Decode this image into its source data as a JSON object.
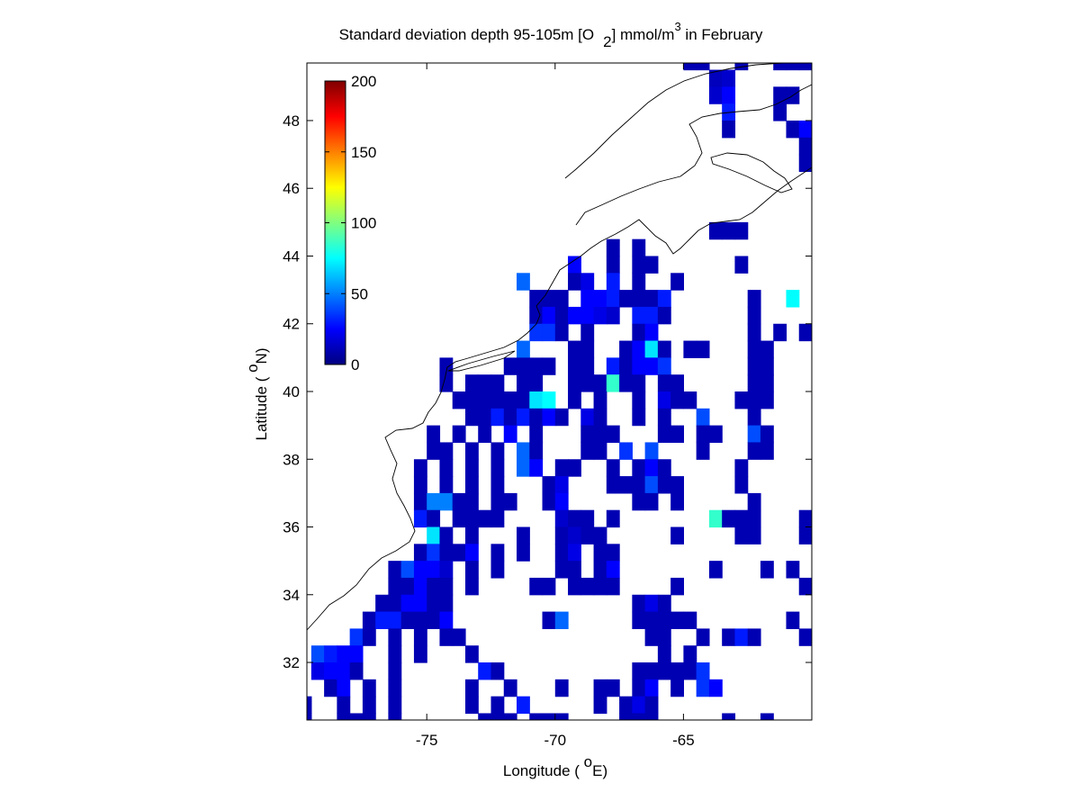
{
  "chart_data": {
    "type": "heatmap",
    "title": [
      "Standard deviation depth 95-105m [O",
      "2",
      "] mmol/m",
      "3",
      " in February"
    ],
    "x_label": [
      "Longitude ( ",
      "o",
      "E)"
    ],
    "y_label": [
      "Latitude ( ",
      "o",
      "N)"
    ],
    "xlim": [
      -79.67,
      -60
    ],
    "ylim": [
      30.3,
      49.7
    ],
    "xticks": [
      -75,
      -70,
      -65
    ],
    "yticks": [
      32,
      34,
      36,
      38,
      40,
      42,
      44,
      46,
      48
    ],
    "colormap": "jet",
    "clim": [
      0,
      200
    ],
    "cticks": [
      0,
      50,
      100,
      150,
      200
    ],
    "rows": [
      {
        "lat": 49.75,
        "lon": [
          -64.75,
          -64.25,
          -62.75,
          -61.25,
          -60.75,
          -60.25
        ],
        "values": [
          10,
          10,
          10,
          10,
          10,
          10
        ]
      },
      {
        "lat": 49.25,
        "lon": [
          -63.75,
          -63.25
        ],
        "values": [
          12,
          15
        ]
      },
      {
        "lat": 48.75,
        "lon": [
          -63.75,
          -63.25,
          -61.25,
          -60.75
        ],
        "values": [
          15,
          25,
          10,
          10
        ]
      },
      {
        "lat": 48.25,
        "lon": [
          -63.25,
          -61.25
        ],
        "values": [
          30,
          10
        ]
      },
      {
        "lat": 47.75,
        "lon": [
          -63.25,
          -60.75,
          -60.25
        ],
        "values": [
          10,
          10,
          25
        ]
      },
      {
        "lat": 47.25,
        "lon": [
          -60.25
        ],
        "values": [
          10
        ]
      },
      {
        "lat": 46.75,
        "lon": [
          -60.25
        ],
        "values": [
          10
        ]
      },
      {
        "lat": 44.75,
        "lon": [
          -63.75,
          -63.25,
          -62.75
        ],
        "values": [
          10,
          10,
          10
        ]
      },
      {
        "lat": 44.25,
        "lon": [
          -67.75,
          -66.75
        ],
        "values": [
          10,
          10
        ]
      },
      {
        "lat": 43.75,
        "lon": [
          -69.25,
          -67.75,
          -66.75,
          -66.25,
          -62.75
        ],
        "values": [
          25,
          10,
          10,
          10,
          10
        ]
      },
      {
        "lat": 43.25,
        "lon": [
          -71.25,
          -69.25,
          -68.75,
          -67.75,
          -66.75,
          -65.25
        ],
        "values": [
          45,
          10,
          20,
          30,
          10,
          10
        ]
      },
      {
        "lat": 42.75,
        "lon": [
          -70.75,
          -70.25,
          -69.75,
          -68.75,
          -68.25,
          -67.75,
          -67.25,
          -66.75,
          -66.25,
          -65.75,
          -62.25,
          -60.75
        ],
        "values": [
          10,
          10,
          10,
          25,
          25,
          30,
          10,
          10,
          10,
          30,
          10,
          75
        ]
      },
      {
        "lat": 42.25,
        "lon": [
          -70.75,
          -70.25,
          -69.75,
          -69.25,
          -68.75,
          -68.25,
          -67.75,
          -66.75,
          -66.25,
          -65.75,
          -62.25
        ],
        "values": [
          10,
          25,
          10,
          25,
          25,
          20,
          15,
          30,
          30,
          10,
          10
        ]
      },
      {
        "lat": 41.75,
        "lon": [
          -70.75,
          -70.25,
          -69.75,
          -68.75,
          -66.75,
          -66.25,
          -62.25,
          -61.25,
          -60.25
        ],
        "values": [
          35,
          35,
          10,
          10,
          10,
          25,
          10,
          10,
          10
        ]
      },
      {
        "lat": 41.25,
        "lon": [
          -71.25,
          -69.25,
          -68.75,
          -67.25,
          -66.75,
          -66.25,
          -65.75,
          -64.75,
          -64.25,
          -62.25,
          -61.75
        ],
        "values": [
          45,
          10,
          10,
          10,
          25,
          70,
          10,
          10,
          10,
          10,
          10
        ]
      },
      {
        "lat": 40.75,
        "lon": [
          -74.25,
          -71.75,
          -71.25,
          -70.75,
          -70.25,
          -69.25,
          -68.75,
          -67.75,
          -67.25,
          -66.75,
          -66.25,
          -65.75,
          -62.25,
          -61.75
        ],
        "values": [
          10,
          10,
          10,
          10,
          10,
          10,
          10,
          30,
          10,
          25,
          25,
          35,
          10,
          10
        ]
      },
      {
        "lat": 40.25,
        "lon": [
          -74.25,
          -73.25,
          -72.75,
          -72.25,
          -71.25,
          -70.75,
          -69.25,
          -68.75,
          -68.25,
          -67.75,
          -67.25,
          -66.75,
          -65.75,
          -65.25,
          -62.25,
          -61.75
        ],
        "values": [
          10,
          10,
          10,
          10,
          10,
          10,
          10,
          10,
          10,
          85,
          10,
          10,
          10,
          10,
          10,
          10
        ]
      },
      {
        "lat": 39.75,
        "lon": [
          -73.75,
          -73.25,
          -72.75,
          -72.25,
          -71.75,
          -71.25,
          -70.75,
          -70.25,
          -69.25,
          -68.25,
          -66.75,
          -65.75,
          -65.25,
          -64.75,
          -62.75,
          -62.25,
          -61.75
        ],
        "values": [
          10,
          10,
          10,
          10,
          10,
          10,
          70,
          75,
          10,
          10,
          10,
          20,
          10,
          10,
          10,
          10,
          10
        ]
      },
      {
        "lat": 39.25,
        "lon": [
          -73.25,
          -72.75,
          -72.25,
          -71.75,
          -71.25,
          -70.75,
          -70.25,
          -69.75,
          -68.75,
          -68.25,
          -66.75,
          -65.75,
          -64.25,
          -62.25
        ],
        "values": [
          10,
          10,
          30,
          10,
          30,
          10,
          25,
          10,
          20,
          10,
          10,
          10,
          40,
          10
        ]
      },
      {
        "lat": 38.75,
        "lon": [
          -74.75,
          -73.75,
          -72.75,
          -71.75,
          -70.75,
          -68.75,
          -68.25,
          -67.75,
          -65.75,
          -65.25,
          -64.25,
          -63.75,
          -62.25,
          -61.75
        ],
        "values": [
          10,
          10,
          10,
          25,
          10,
          10,
          10,
          10,
          10,
          10,
          10,
          10,
          40,
          10
        ]
      },
      {
        "lat": 38.25,
        "lon": [
          -74.75,
          -74.25,
          -73.25,
          -72.25,
          -71.25,
          -70.75,
          -68.75,
          -68.25,
          -67.25,
          -66.25,
          -64.25,
          -62.25,
          -61.75
        ],
        "values": [
          10,
          10,
          10,
          10,
          45,
          10,
          10,
          10,
          35,
          40,
          10,
          10,
          10
        ]
      },
      {
        "lat": 37.75,
        "lon": [
          -75.25,
          -74.25,
          -73.25,
          -72.25,
          -71.25,
          -70.75,
          -69.75,
          -69.25,
          -67.75,
          -66.75,
          -66.25,
          -65.75,
          -62.75
        ],
        "values": [
          10,
          10,
          10,
          10,
          45,
          25,
          10,
          10,
          10,
          10,
          25,
          10,
          10
        ]
      },
      {
        "lat": 37.25,
        "lon": [
          -75.25,
          -74.25,
          -73.25,
          -72.25,
          -70.25,
          -69.75,
          -67.75,
          -67.25,
          -66.75,
          -66.25,
          -65.75,
          -65.25,
          -62.75
        ],
        "values": [
          10,
          10,
          10,
          10,
          10,
          20,
          10,
          10,
          10,
          40,
          10,
          10,
          10
        ]
      },
      {
        "lat": 36.75,
        "lon": [
          -75.25,
          -74.75,
          -74.25,
          -73.75,
          -73.25,
          -72.25,
          -71.75,
          -70.25,
          -69.75,
          -66.75,
          -66.25,
          -65.25,
          -62.25
        ],
        "values": [
          10,
          50,
          50,
          10,
          10,
          10,
          10,
          10,
          25,
          10,
          10,
          10,
          10
        ]
      },
      {
        "lat": 36.25,
        "lon": [
          -75.25,
          -74.75,
          -73.75,
          -73.25,
          -72.75,
          -72.25,
          -69.75,
          -69.25,
          -68.75,
          -67.75,
          -63.75,
          -63.25,
          -62.75,
          -62.25,
          -60.25
        ],
        "values": [
          30,
          10,
          10,
          10,
          10,
          10,
          15,
          10,
          10,
          10,
          85,
          10,
          10,
          10,
          10
        ]
      },
      {
        "lat": 35.75,
        "lon": [
          -74.75,
          -74.25,
          -73.25,
          -71.25,
          -69.75,
          -69.25,
          -68.75,
          -68.25,
          -65.25,
          -62.75,
          -62.25,
          -60.25
        ],
        "values": [
          70,
          10,
          10,
          10,
          10,
          15,
          10,
          10,
          10,
          10,
          10,
          10
        ]
      },
      {
        "lat": 35.25,
        "lon": [
          -75.25,
          -74.75,
          -74.25,
          -73.75,
          -73.25,
          -72.25,
          -71.25,
          -69.75,
          -69.25,
          -68.25,
          -67.75
        ],
        "values": [
          10,
          35,
          10,
          10,
          25,
          10,
          10,
          10,
          20,
          10,
          10
        ]
      },
      {
        "lat": 34.75,
        "lon": [
          -76.25,
          -75.75,
          -75.25,
          -74.75,
          -74.25,
          -73.25,
          -72.25,
          -69.75,
          -69.25,
          -68.25,
          -67.75,
          -63.75,
          -61.75,
          -60.75
        ],
        "values": [
          10,
          40,
          25,
          25,
          15,
          10,
          10,
          10,
          10,
          10,
          25,
          10,
          10,
          10
        ]
      },
      {
        "lat": 34.25,
        "lon": [
          -76.25,
          -75.75,
          -75.25,
          -74.75,
          -74.25,
          -73.25,
          -70.75,
          -70.25,
          -69.25,
          -68.75,
          -68.25,
          -67.75,
          -65.25,
          -60.25
        ],
        "values": [
          10,
          10,
          25,
          10,
          10,
          10,
          10,
          10,
          10,
          10,
          10,
          10,
          10,
          10
        ]
      },
      {
        "lat": 33.75,
        "lon": [
          -76.75,
          -76.25,
          -75.75,
          -75.25,
          -74.75,
          -74.25,
          -66.75,
          -66.25,
          -65.75
        ],
        "values": [
          10,
          10,
          25,
          25,
          10,
          10,
          10,
          20,
          10
        ]
      },
      {
        "lat": 33.25,
        "lon": [
          -77.25,
          -76.75,
          -76.25,
          -75.75,
          -75.25,
          -74.75,
          -74.25,
          -70.25,
          -69.75,
          -66.75,
          -66.25,
          -65.75,
          -65.25,
          -64.75,
          -60.75
        ],
        "values": [
          10,
          30,
          30,
          10,
          10,
          10,
          25,
          10,
          45,
          10,
          10,
          10,
          10,
          10,
          10
        ]
      },
      {
        "lat": 32.75,
        "lon": [
          -77.75,
          -77.25,
          -76.25,
          -75.25,
          -74.25,
          -73.75,
          -66.25,
          -65.75,
          -64.25,
          -63.25,
          -62.75,
          -62.25,
          -60.25
        ],
        "values": [
          35,
          10,
          10,
          10,
          10,
          10,
          10,
          10,
          10,
          10,
          30,
          10,
          10
        ]
      },
      {
        "lat": 32.25,
        "lon": [
          -79.25,
          -78.75,
          -78.25,
          -77.75,
          -76.25,
          -75.25,
          -73.25,
          -65.75,
          -64.75
        ],
        "values": [
          40,
          30,
          25,
          25,
          10,
          10,
          10,
          10,
          10
        ]
      },
      {
        "lat": 31.75,
        "lon": [
          -79.25,
          -78.75,
          -78.25,
          -77.75,
          -76.25,
          -72.75,
          -72.25,
          -66.75,
          -66.25,
          -65.75,
          -65.25,
          -64.75,
          -64.25
        ],
        "values": [
          20,
          25,
          25,
          10,
          10,
          30,
          10,
          10,
          10,
          10,
          10,
          10,
          35
        ]
      },
      {
        "lat": 31.25,
        "lon": [
          -78.75,
          -78.25,
          -77.25,
          -76.25,
          -73.25,
          -71.75,
          -69.75,
          -68.25,
          -67.75,
          -66.75,
          -66.25,
          -65.25,
          -64.25,
          -63.75
        ],
        "values": [
          10,
          25,
          10,
          10,
          10,
          10,
          10,
          10,
          10,
          10,
          25,
          10,
          35,
          25
        ]
      },
      {
        "lat": 30.75,
        "lon": [
          -79.75,
          -78.25,
          -77.25,
          -76.25,
          -73.25,
          -72.25,
          -71.25,
          -68.25,
          -67.25,
          -66.75,
          -66.25
        ],
        "values": [
          10,
          10,
          10,
          10,
          10,
          10,
          30,
          10,
          10,
          20,
          10
        ]
      },
      {
        "lat": 30.25,
        "lon": [
          -79.75,
          -78.25,
          -77.75,
          -77.25,
          -76.25,
          -72.75,
          -72.25,
          -71.75,
          -70.75,
          -70.25,
          -69.75,
          -67.25,
          -66.75,
          -66.25,
          -63.25,
          -61.75
        ],
        "values": [
          10,
          10,
          10,
          10,
          10,
          10,
          10,
          10,
          10,
          10,
          10,
          10,
          10,
          10,
          10,
          10
        ]
      }
    ]
  }
}
